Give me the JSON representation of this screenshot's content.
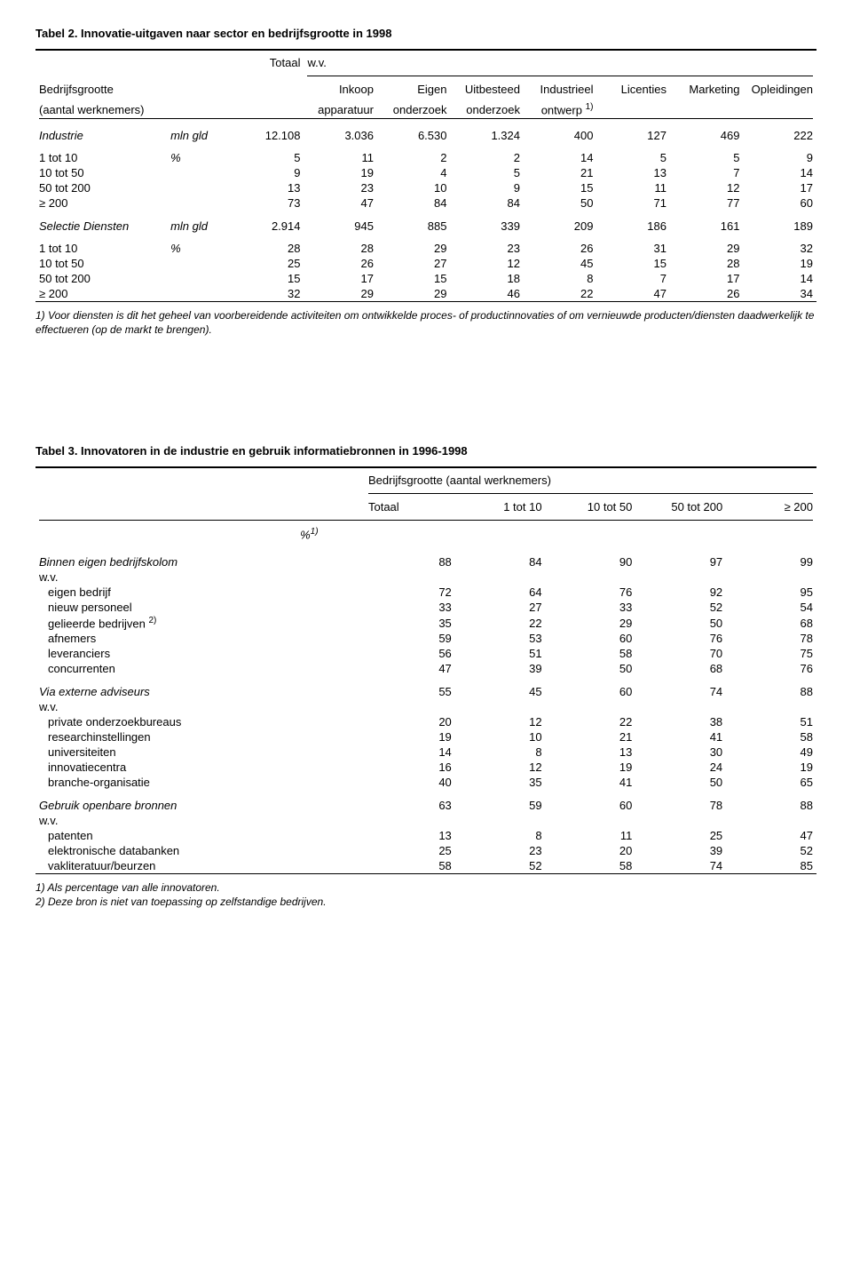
{
  "table2": {
    "title": "Tabel 2.  Innovatie-uitgaven naar sector en bedrijfsgrootte in 1998",
    "row_header_label1": "Bedrijfsgrootte",
    "row_header_label2": "(aantal werknemers)",
    "col_totaal": "Totaal",
    "col_wv": "w.v.",
    "cols": [
      {
        "l1": "Inkoop",
        "l2": "apparatuur"
      },
      {
        "l1": "Eigen",
        "l2": "onderzoek"
      },
      {
        "l1": "Uitbesteed",
        "l2": "onderzoek"
      },
      {
        "l1": "Industrieel",
        "l2": "ontwerp ",
        "sup": "1)"
      },
      {
        "l1": "Licenties",
        "l2": ""
      },
      {
        "l1": "Marketing",
        "l2": ""
      },
      {
        "l1": "Opleidingen",
        "l2": ""
      }
    ],
    "sections": [
      {
        "header": {
          "label": "Industrie",
          "unit": "mln gld",
          "values": [
            "12.108",
            "3.036",
            "6.530",
            "1.324",
            "400",
            "127",
            "469",
            "222"
          ]
        },
        "rows": [
          {
            "label": "1 tot 10",
            "unit": "%",
            "values": [
              "5",
              "11",
              "2",
              "2",
              "14",
              "5",
              "5",
              "9"
            ]
          },
          {
            "label": "10 tot 50",
            "unit": "",
            "values": [
              "9",
              "19",
              "4",
              "5",
              "21",
              "13",
              "7",
              "14"
            ]
          },
          {
            "label": "50 tot 200",
            "unit": "",
            "values": [
              "13",
              "23",
              "10",
              "9",
              "15",
              "11",
              "12",
              "17"
            ]
          },
          {
            "label": "≥ 200",
            "unit": "",
            "values": [
              "73",
              "47",
              "84",
              "84",
              "50",
              "71",
              "77",
              "60"
            ]
          }
        ]
      },
      {
        "header": {
          "label": "Selectie Diensten",
          "unit": "mln gld",
          "values": [
            "2.914",
            "945",
            "885",
            "339",
            "209",
            "186",
            "161",
            "189"
          ]
        },
        "rows": [
          {
            "label": "1 tot 10",
            "unit": "%",
            "values": [
              "28",
              "28",
              "29",
              "23",
              "26",
              "31",
              "29",
              "32"
            ]
          },
          {
            "label": "10 tot 50",
            "unit": "",
            "values": [
              "25",
              "26",
              "27",
              "12",
              "45",
              "15",
              "28",
              "19"
            ]
          },
          {
            "label": "50 tot 200",
            "unit": "",
            "values": [
              "15",
              "17",
              "15",
              "18",
              "8",
              "7",
              "17",
              "14"
            ]
          },
          {
            "label": "≥ 200",
            "unit": "",
            "values": [
              "32",
              "29",
              "29",
              "46",
              "22",
              "47",
              "26",
              "34"
            ]
          }
        ]
      }
    ],
    "footnote": "1) Voor diensten is dit het geheel van voorbereidende activiteiten om ontwikkelde proces- of productinnovaties of om vernieuwde producten/diensten daadwerkelijk te effectueren (op de markt te brengen)."
  },
  "table3": {
    "title": "Tabel 3.  Innovatoren in de industrie en gebruik informatiebronnen in 1996-1998",
    "col_group_label": "Bedrijfsgrootte (aantal werknemers)",
    "cols": [
      "Totaal",
      "1 tot 10",
      "10 tot 50",
      "50 tot 200",
      "≥ 200"
    ],
    "unit_label": "%",
    "unit_sup": "1)",
    "sections": [
      {
        "header": {
          "label": "Binnen eigen bedrijfskolom",
          "values": [
            "88",
            "84",
            "90",
            "97",
            "99"
          ]
        },
        "wv": "w.v.",
        "rows": [
          {
            "label": "eigen bedrijf",
            "values": [
              "72",
              "64",
              "76",
              "92",
              "95"
            ]
          },
          {
            "label": "nieuw personeel",
            "values": [
              "33",
              "27",
              "33",
              "52",
              "54"
            ]
          },
          {
            "label": "gelieerde bedrijven ",
            "sup": "2)",
            "values": [
              "35",
              "22",
              "29",
              "50",
              "68"
            ]
          },
          {
            "label": "afnemers",
            "values": [
              "59",
              "53",
              "60",
              "76",
              "78"
            ]
          },
          {
            "label": "leveranciers",
            "values": [
              "56",
              "51",
              "58",
              "70",
              "75"
            ]
          },
          {
            "label": "concurrenten",
            "values": [
              "47",
              "39",
              "50",
              "68",
              "76"
            ]
          }
        ]
      },
      {
        "header": {
          "label": "Via externe adviseurs",
          "values": [
            "55",
            "45",
            "60",
            "74",
            "88"
          ]
        },
        "wv": "w.v.",
        "rows": [
          {
            "label": "private onderzoekbureaus",
            "values": [
              "20",
              "12",
              "22",
              "38",
              "51"
            ]
          },
          {
            "label": "researchinstellingen",
            "values": [
              "19",
              "10",
              "21",
              "41",
              "58"
            ]
          },
          {
            "label": "universiteiten",
            "values": [
              "14",
              "8",
              "13",
              "30",
              "49"
            ]
          },
          {
            "label": "innovatiecentra",
            "values": [
              "16",
              "12",
              "19",
              "24",
              "19"
            ]
          },
          {
            "label": "branche-organisatie",
            "values": [
              "40",
              "35",
              "41",
              "50",
              "65"
            ]
          }
        ]
      },
      {
        "header": {
          "label": "Gebruik openbare bronnen",
          "values": [
            "63",
            "59",
            "60",
            "78",
            "88"
          ]
        },
        "wv": "w.v.",
        "rows": [
          {
            "label": "patenten",
            "values": [
              "13",
              "8",
              "11",
              "25",
              "47"
            ]
          },
          {
            "label": "elektronische databanken",
            "values": [
              "25",
              "23",
              "20",
              "39",
              "52"
            ]
          },
          {
            "label": "vakliteratuur/beurzen",
            "values": [
              "58",
              "52",
              "58",
              "74",
              "85"
            ]
          }
        ]
      }
    ],
    "footnotes": [
      "1) Als percentage van alle innovatoren.",
      "2) Deze bron is niet van toepassing op zelfstandige bedrijven."
    ]
  }
}
